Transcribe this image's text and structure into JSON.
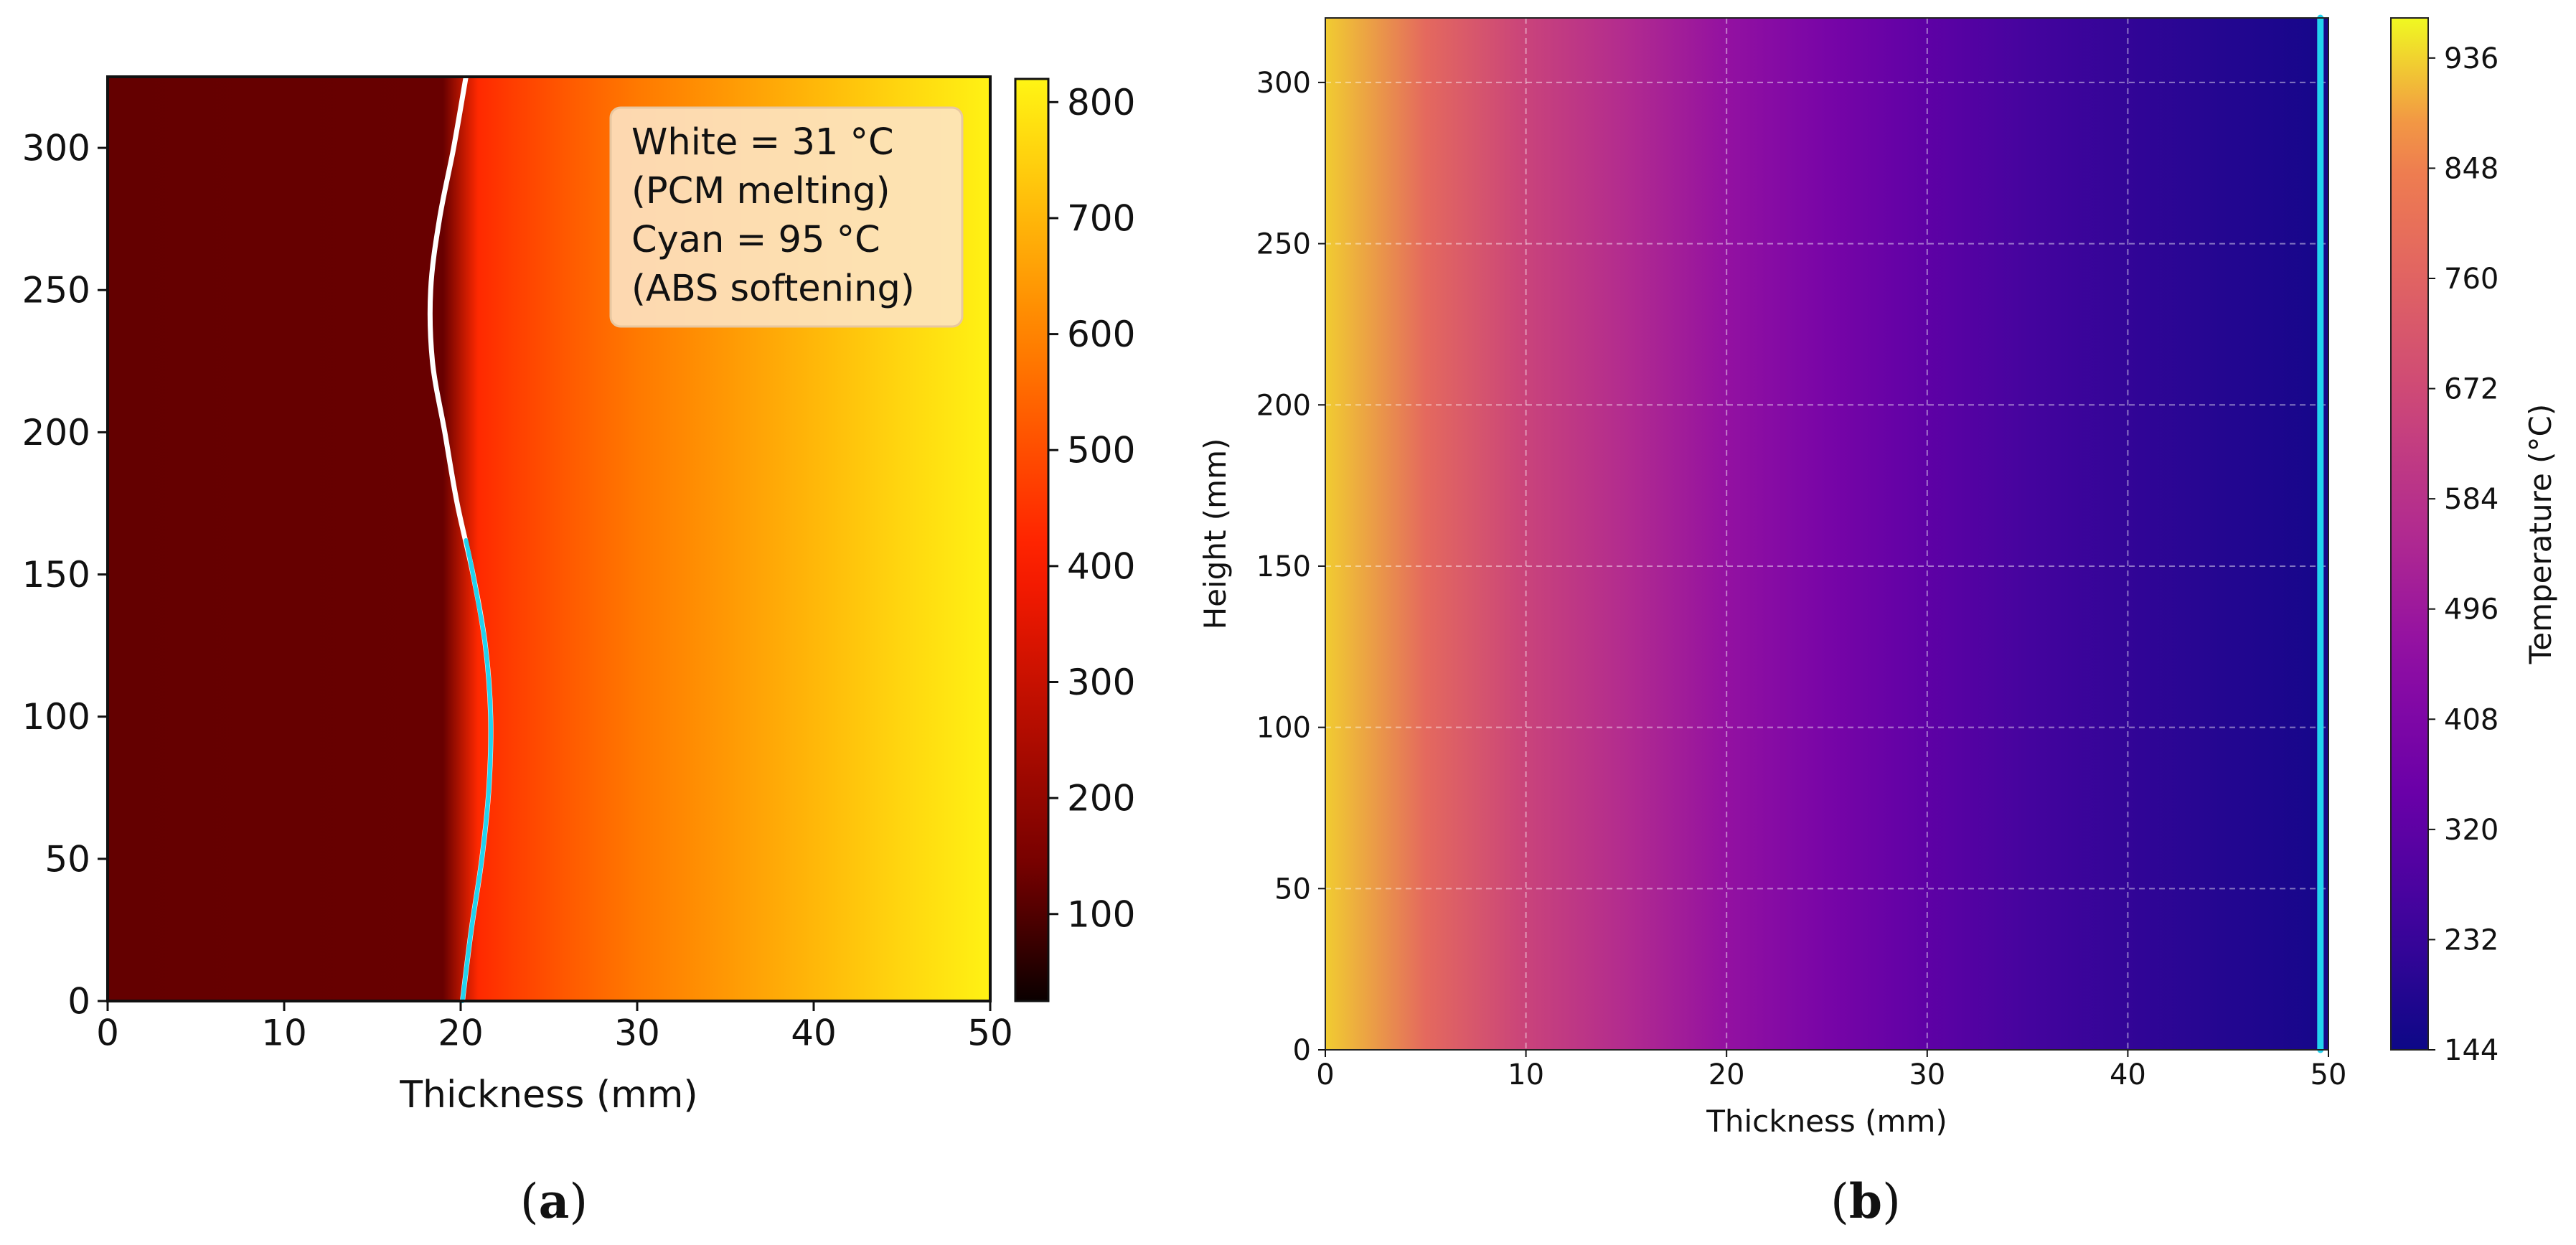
{
  "chart_data": [
    {
      "panel": "(a)",
      "panel_letter": "a",
      "type": "heatmap",
      "xlabel": "Thickness (mm)",
      "ylabel": "",
      "xlim": [
        0,
        50
      ],
      "ylim": [
        0,
        325
      ],
      "xticks": [
        0,
        10,
        20,
        30,
        40,
        50
      ],
      "yticks": [
        0,
        50,
        100,
        150,
        200,
        250,
        300
      ],
      "colormap": "hot",
      "colorbar": {
        "min": 25,
        "max": 820,
        "ticks": [
          100,
          200,
          300,
          400,
          500,
          600,
          700,
          800
        ],
        "label": ""
      },
      "field": {
        "description_of_gradient": "temperature rises from left to right",
        "profile_x": [
          0,
          19,
          21,
          23,
          26,
          30,
          35,
          40,
          45,
          50
        ],
        "profile_t": [
          120,
          125,
          430,
          470,
          520,
          580,
          640,
          700,
          760,
          815
        ]
      },
      "legend": {
        "lines": [
          "White = 31 °C",
          "(PCM melting)",
          "Cyan = 95 °C",
          "(ABS softening)"
        ],
        "position": "top-right"
      },
      "series": [
        {
          "color": "#ffffff",
          "points": [
            [
              20.1,
              0
            ],
            [
              20.6,
              25
            ],
            [
              21.2,
              50
            ],
            [
              21.6,
              75
            ],
            [
              21.7,
              100
            ],
            [
              21.4,
              125
            ],
            [
              20.7,
              150
            ],
            [
              19.8,
              175
            ],
            [
              19.1,
              200
            ],
            [
              18.4,
              225
            ],
            [
              18.3,
              250
            ],
            [
              18.8,
              275
            ],
            [
              19.6,
              300
            ],
            [
              20.3,
              325
            ]
          ]
        },
        {
          "color": "#22d3ee",
          "points": [
            [
              20.1,
              0
            ],
            [
              20.6,
              25
            ],
            [
              21.2,
              50
            ],
            [
              21.6,
              75
            ],
            [
              21.7,
              100
            ],
            [
              21.4,
              125
            ],
            [
              20.7,
              150
            ],
            [
              20.3,
              162
            ]
          ]
        }
      ]
    },
    {
      "panel": "(b)",
      "panel_letter": "b",
      "type": "heatmap",
      "xlabel": "Thickness (mm)",
      "ylabel": "Height (mm)",
      "xlim": [
        0,
        50
      ],
      "ylim": [
        0,
        320
      ],
      "xticks": [
        0,
        10,
        20,
        30,
        40,
        50
      ],
      "yticks": [
        0,
        50,
        100,
        150,
        200,
        250,
        300
      ],
      "grid": true,
      "colormap": "plasma",
      "colorbar": {
        "min": 144,
        "max": 968,
        "ticks": [
          144,
          232,
          320,
          408,
          496,
          584,
          672,
          760,
          848,
          936
        ],
        "label": "Temperature (°C)"
      },
      "field": {
        "description_of_gradient": "temperature falls from left to right",
        "profile_x": [
          0,
          5,
          10,
          15,
          20,
          25,
          30,
          35,
          40,
          45,
          50
        ],
        "profile_t": [
          930,
          780,
          650,
          560,
          470,
          390,
          320,
          260,
          220,
          190,
          160
        ]
      },
      "series": [
        {
          "color": "#22d3ee",
          "points": [
            [
              49.6,
              0
            ],
            [
              49.6,
              320
            ]
          ]
        }
      ]
    }
  ],
  "colors": {
    "white_isotherm": "#ffffff",
    "cyan_isotherm": "#22d3ee",
    "legend_box": "#fde3c3"
  }
}
